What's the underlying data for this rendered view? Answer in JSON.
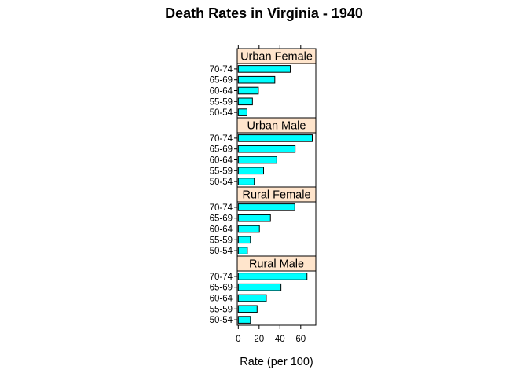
{
  "chart_data": {
    "type": "bar",
    "orientation": "horizontal",
    "title": "Death Rates in Virginia - 1940",
    "xlabel": "Rate (per 100)",
    "xlim": [
      -1,
      74.5
    ],
    "xticks": [
      0,
      20,
      40,
      60
    ],
    "categories": [
      "50-54",
      "55-59",
      "60-64",
      "65-69",
      "70-74"
    ],
    "panels": [
      {
        "name": "Urban Female",
        "values": [
          8.4,
          13.6,
          19.3,
          35.1,
          50.0
        ]
      },
      {
        "name": "Urban Male",
        "values": [
          15.4,
          24.3,
          37.0,
          54.6,
          71.1
        ]
      },
      {
        "name": "Rural Female",
        "values": [
          8.7,
          11.7,
          20.3,
          30.9,
          54.3
        ]
      },
      {
        "name": "Rural Male",
        "values": [
          11.7,
          18.1,
          26.9,
          41.0,
          66.0
        ]
      }
    ],
    "colors": {
      "bar": "#00ffff",
      "strip": "#ffe5cc",
      "border": "#000000"
    },
    "grid": false,
    "legend": "none"
  }
}
